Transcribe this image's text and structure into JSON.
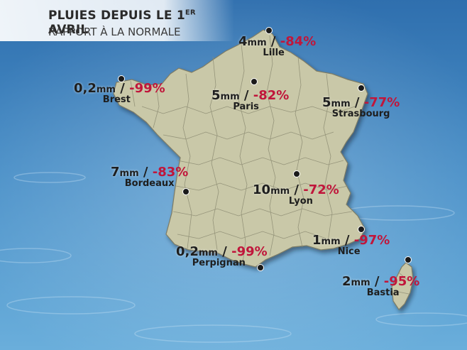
{
  "title": {
    "line1_main": "PLUIES DEPUIS LE 1",
    "line1_sup": "ER",
    "line1_end": " AVRIL",
    "line2": "RAPPORT À LA NORMALE"
  },
  "cities": [
    {
      "id": "lille",
      "name": "Lille",
      "rain": "4",
      "unit": "mm",
      "sep": " / ",
      "pct": "-84%"
    },
    {
      "id": "brest",
      "name": "Brest",
      "rain": "0,2",
      "unit": "mm",
      "sep": " / ",
      "pct": "-99%"
    },
    {
      "id": "paris",
      "name": "Paris",
      "rain": "5",
      "unit": "mm",
      "sep": " / ",
      "pct": "-82%"
    },
    {
      "id": "strasbourg",
      "name": "Strasbourg",
      "rain": "5",
      "unit": "mm",
      "sep": " / ",
      "pct": "-77%"
    },
    {
      "id": "bordeaux",
      "name": "Bordeaux",
      "rain": "7",
      "unit": "mm",
      "sep": " / ",
      "pct": "-83%"
    },
    {
      "id": "lyon",
      "name": "Lyon",
      "rain": "10",
      "unit": "mm",
      "sep": " / ",
      "pct": "-72%"
    },
    {
      "id": "nice",
      "name": "Nice",
      "rain": "1",
      "unit": "mm",
      "sep": " / ",
      "pct": "-97%"
    },
    {
      "id": "perpignan",
      "name": "Perpignan",
      "rain": "0,2",
      "unit": "mm",
      "sep": " / ",
      "pct": "-99%"
    },
    {
      "id": "bastia",
      "name": "Bastia",
      "rain": "2",
      "unit": "mm",
      "sep": " / ",
      "pct": "-95%"
    }
  ],
  "colors": {
    "sea": "#3f86c0",
    "land": "#c9c8a8",
    "border": "#8c8b72",
    "negative": "#c0163b"
  }
}
